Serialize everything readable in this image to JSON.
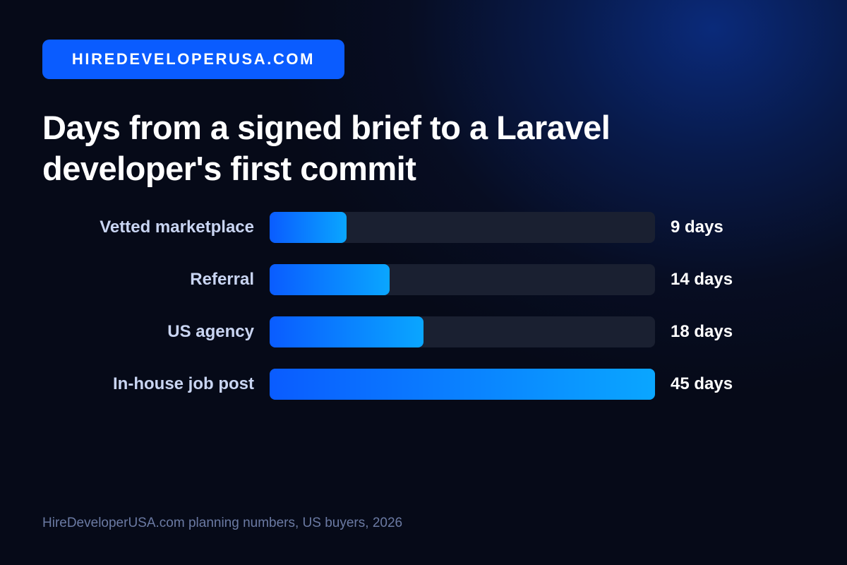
{
  "badge": "HIREDEVELOPERUSA.COM",
  "chart_data": {
    "type": "bar",
    "orientation": "horizontal",
    "title": "Days from a signed brief to a Laravel developer's first commit",
    "categories": [
      "Vetted marketplace",
      "Referral",
      "US agency",
      "In-house job post"
    ],
    "values": [
      9,
      14,
      18,
      45
    ],
    "value_labels": [
      "9 days",
      "14 days",
      "18 days",
      "45 days"
    ],
    "color": "#0a5cff",
    "xlim": [
      0,
      45
    ],
    "source": "HireDeveloperUSA.com planning numbers, US buyers, 2026"
  }
}
